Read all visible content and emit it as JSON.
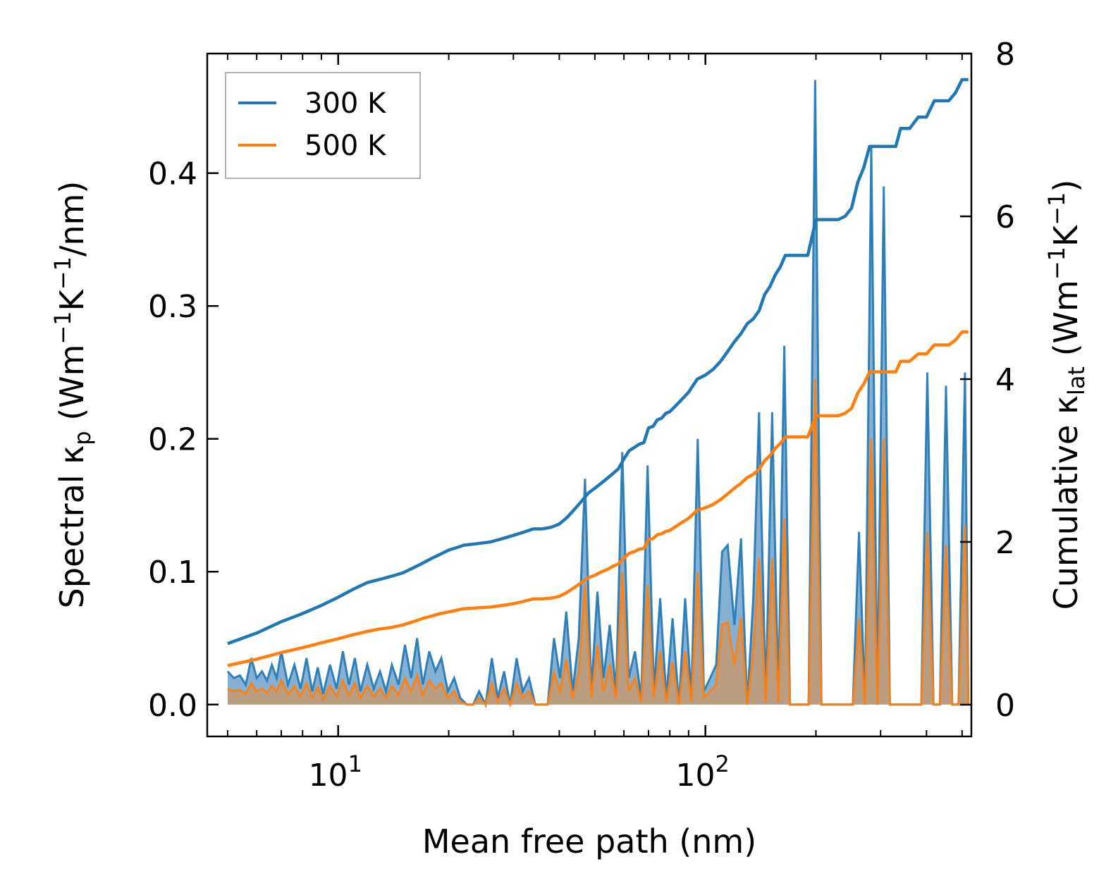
{
  "chart_data": {
    "type": "line",
    "x_scale": "log",
    "xlabel": "Mean free path (nm)",
    "ylabel_left": {
      "prefix": "Spectral κ",
      "sub": "p",
      "units_open": " (Wm",
      "sup1": "−1",
      "mid": "K",
      "sup2": "−1",
      "suffix": "/nm)"
    },
    "ylabel_right": {
      "prefix": "Cumulative κ",
      "sub": "lat",
      "units_open": " (Wm",
      "sup1": "−1",
      "mid": "K",
      "sup2": "−1",
      "suffix": ")"
    },
    "xlim": [
      4.4,
      530
    ],
    "ylim_left": [
      -0.024,
      0.49
    ],
    "ylim_right": [
      -0.39,
      8.0
    ],
    "x_ticks": [
      {
        "base": "10",
        "exp": "1",
        "value": 10
      },
      {
        "base": "10",
        "exp": "2",
        "value": 100
      }
    ],
    "y_left_ticks": [
      "0.0",
      "0.1",
      "0.2",
      "0.3",
      "0.4"
    ],
    "y_left_values": [
      0.0,
      0.1,
      0.2,
      0.3,
      0.4
    ],
    "y_right_ticks": [
      "0",
      "2",
      "4",
      "6",
      "8"
    ],
    "y_right_values": [
      0,
      2,
      4,
      6,
      8
    ],
    "legend": {
      "position": "top-left",
      "entries": [
        "300 K",
        "500 K"
      ]
    },
    "colors": {
      "300 K": "#1f77b4",
      "500 K": "#ff7f0e",
      "fill_300": "#5b95c4",
      "fill_500": "#c39a72"
    },
    "series_cumulative": [
      {
        "name": "300 K",
        "x": [
          5,
          6,
          7,
          8,
          9,
          10,
          11,
          12,
          13,
          14,
          15,
          16,
          17,
          18,
          19,
          20,
          21,
          22,
          24,
          26,
          28,
          30,
          32,
          34,
          36,
          38,
          40,
          42,
          44,
          46,
          48,
          50,
          52,
          54,
          56,
          58,
          60,
          62,
          64,
          66,
          68,
          70,
          72,
          74,
          76,
          78,
          80,
          85,
          90,
          95,
          100,
          105,
          110,
          115,
          120,
          125,
          130,
          135,
          140,
          145,
          150,
          155,
          160,
          165,
          170,
          180,
          190,
          200,
          210,
          220,
          230,
          240,
          250,
          260,
          270,
          280,
          290,
          300,
          310,
          320,
          330,
          340,
          360,
          380,
          400,
          420,
          440,
          460,
          480,
          500,
          520
        ],
        "y": [
          0.75,
          0.88,
          1.02,
          1.12,
          1.22,
          1.32,
          1.42,
          1.5,
          1.54,
          1.58,
          1.62,
          1.68,
          1.74,
          1.8,
          1.85,
          1.9,
          1.93,
          1.96,
          1.98,
          2.0,
          2.04,
          2.08,
          2.12,
          2.16,
          2.16,
          2.18,
          2.22,
          2.3,
          2.4,
          2.5,
          2.6,
          2.66,
          2.72,
          2.78,
          2.84,
          2.9,
          3.02,
          3.12,
          3.16,
          3.2,
          3.22,
          3.4,
          3.42,
          3.5,
          3.52,
          3.58,
          3.6,
          3.72,
          3.84,
          4.0,
          4.05,
          4.12,
          4.22,
          4.34,
          4.46,
          4.56,
          4.68,
          4.74,
          4.84,
          5.04,
          5.14,
          5.28,
          5.38,
          5.52,
          5.52,
          5.52,
          5.52,
          5.96,
          5.96,
          5.96,
          5.96,
          6.0,
          6.1,
          6.42,
          6.6,
          6.86,
          6.86,
          6.86,
          6.86,
          6.86,
          6.86,
          7.08,
          7.08,
          7.22,
          7.22,
          7.42,
          7.42,
          7.42,
          7.52,
          7.68,
          7.68
        ]
      },
      {
        "name": "500 K",
        "x": [
          5,
          6,
          7,
          8,
          9,
          10,
          11,
          12,
          13,
          14,
          15,
          16,
          17,
          18,
          19,
          20,
          21,
          22,
          24,
          26,
          28,
          30,
          32,
          34,
          36,
          38,
          40,
          42,
          44,
          46,
          48,
          50,
          52,
          54,
          56,
          58,
          60,
          62,
          64,
          66,
          68,
          70,
          72,
          74,
          76,
          78,
          80,
          85,
          90,
          95,
          100,
          105,
          110,
          115,
          120,
          125,
          130,
          135,
          140,
          145,
          150,
          155,
          160,
          165,
          170,
          180,
          190,
          200,
          210,
          220,
          230,
          240,
          250,
          260,
          270,
          280,
          290,
          300,
          310,
          320,
          330,
          340,
          360,
          380,
          400,
          420,
          440,
          460,
          480,
          500,
          520
        ],
        "y": [
          0.48,
          0.56,
          0.64,
          0.7,
          0.76,
          0.81,
          0.86,
          0.9,
          0.93,
          0.95,
          0.98,
          1.02,
          1.06,
          1.09,
          1.12,
          1.14,
          1.16,
          1.18,
          1.19,
          1.2,
          1.22,
          1.24,
          1.27,
          1.3,
          1.3,
          1.31,
          1.33,
          1.38,
          1.44,
          1.5,
          1.56,
          1.59,
          1.63,
          1.66,
          1.7,
          1.73,
          1.8,
          1.86,
          1.88,
          1.91,
          1.92,
          2.03,
          2.04,
          2.09,
          2.1,
          2.13,
          2.14,
          2.22,
          2.29,
          2.39,
          2.42,
          2.46,
          2.52,
          2.59,
          2.66,
          2.72,
          2.79,
          2.83,
          2.89,
          3.0,
          3.06,
          3.15,
          3.21,
          3.29,
          3.29,
          3.29,
          3.29,
          3.55,
          3.55,
          3.55,
          3.55,
          3.58,
          3.64,
          3.83,
          3.94,
          4.09,
          4.09,
          4.09,
          4.09,
          4.09,
          4.09,
          4.22,
          4.22,
          4.31,
          4.31,
          4.42,
          4.42,
          4.42,
          4.48,
          4.58,
          4.58
        ]
      }
    ],
    "series_spectral": [
      {
        "name": "300 K",
        "x": [
          5,
          5.2,
          5.4,
          5.6,
          5.8,
          6,
          6.2,
          6.4,
          6.6,
          6.8,
          7,
          7.3,
          7.6,
          7.9,
          8.2,
          8.5,
          8.8,
          9.1,
          9.5,
          9.9,
          10.3,
          10.7,
          11.1,
          11.5,
          12,
          12.5,
          13,
          13.5,
          14,
          14.6,
          15.2,
          15.8,
          16.4,
          17,
          17.7,
          18.4,
          19.1,
          19.9,
          20.7,
          21.5,
          22.4,
          23.3,
          24.2,
          25.2,
          26.2,
          27.2,
          28.3,
          29.4,
          30.6,
          31.8,
          33.1,
          34.4,
          35.8,
          37.2,
          38.7,
          40.2,
          41.8,
          43.5,
          45.2,
          47,
          48.9,
          50.8,
          52.8,
          54.9,
          57.1,
          59.4,
          61.8,
          64.3,
          66.9,
          69.6,
          72.4,
          75.3,
          78.3,
          81.4,
          84.7,
          88.1,
          91.6,
          95.3,
          99.1,
          103,
          107,
          111,
          115,
          120,
          125,
          130,
          135,
          140,
          146,
          152,
          158,
          164,
          170,
          177,
          184,
          191,
          199,
          207,
          215,
          224,
          233,
          242,
          252,
          262,
          272,
          283,
          294,
          306,
          318,
          331,
          344,
          358,
          372,
          387,
          402,
          418,
          435,
          452,
          470,
          489,
          509,
          520
        ],
        "y": [
          0.025,
          0.02,
          0.022,
          0.015,
          0.035,
          0.02,
          0.025,
          0.018,
          0.03,
          0.02,
          0.04,
          0.015,
          0.03,
          0.012,
          0.035,
          0.01,
          0.028,
          0.008,
          0.03,
          0.012,
          0.04,
          0.015,
          0.035,
          0.01,
          0.03,
          0.012,
          0.025,
          0.01,
          0.03,
          0.015,
          0.045,
          0.02,
          0.05,
          0.015,
          0.04,
          0.025,
          0.035,
          0.01,
          0.02,
          0.005,
          0.0,
          0.0,
          0.01,
          0.0,
          0.035,
          0.005,
          0.025,
          0.0,
          0.035,
          0.01,
          0.02,
          0.0,
          0.0,
          0.0,
          0.05,
          0.02,
          0.07,
          0.01,
          0.05,
          0.17,
          0.01,
          0.085,
          0.02,
          0.06,
          0.01,
          0.19,
          0.02,
          0.04,
          0.005,
          0.18,
          0.01,
          0.08,
          0.005,
          0.065,
          0.0,
          0.08,
          0.005,
          0.2,
          0.01,
          0.02,
          0.03,
          0.115,
          0.12,
          0.06,
          0.125,
          0.0,
          0.08,
          0.22,
          0.005,
          0.22,
          0.005,
          0.27,
          0.0,
          0.0,
          0.0,
          0.0,
          0.47,
          0.0,
          0.0,
          0.0,
          0.0,
          0.0,
          0.0,
          0.13,
          0.0,
          0.42,
          0.0,
          0.39,
          0.0,
          0.0,
          0.0,
          0.0,
          0.0,
          0.0,
          0.25,
          0.0,
          0.0,
          0.24,
          0.0,
          0.0,
          0.25,
          0.0
        ]
      },
      {
        "name": "500 K",
        "x": [
          5,
          5.2,
          5.4,
          5.6,
          5.8,
          6,
          6.2,
          6.4,
          6.6,
          6.8,
          7,
          7.3,
          7.6,
          7.9,
          8.2,
          8.5,
          8.8,
          9.1,
          9.5,
          9.9,
          10.3,
          10.7,
          11.1,
          11.5,
          12,
          12.5,
          13,
          13.5,
          14,
          14.6,
          15.2,
          15.8,
          16.4,
          17,
          17.7,
          18.4,
          19.1,
          19.9,
          20.7,
          21.5,
          22.4,
          23.3,
          24.2,
          25.2,
          26.2,
          27.2,
          28.3,
          29.4,
          30.6,
          31.8,
          33.1,
          34.4,
          35.8,
          37.2,
          38.7,
          40.2,
          41.8,
          43.5,
          45.2,
          47,
          48.9,
          50.8,
          52.8,
          54.9,
          57.1,
          59.4,
          61.8,
          64.3,
          66.9,
          69.6,
          72.4,
          75.3,
          78.3,
          81.4,
          84.7,
          88.1,
          91.6,
          95.3,
          99.1,
          103,
          107,
          111,
          115,
          120,
          125,
          130,
          135,
          140,
          146,
          152,
          158,
          164,
          170,
          177,
          184,
          191,
          199,
          207,
          215,
          224,
          233,
          242,
          252,
          262,
          272,
          283,
          294,
          306,
          318,
          331,
          344,
          358,
          372,
          387,
          402,
          418,
          435,
          452,
          470,
          489,
          509,
          520
        ],
        "y": [
          0.012,
          0.01,
          0.011,
          0.008,
          0.016,
          0.01,
          0.012,
          0.009,
          0.014,
          0.01,
          0.018,
          0.008,
          0.014,
          0.006,
          0.016,
          0.005,
          0.013,
          0.004,
          0.014,
          0.006,
          0.018,
          0.007,
          0.016,
          0.005,
          0.014,
          0.006,
          0.012,
          0.005,
          0.014,
          0.007,
          0.02,
          0.01,
          0.022,
          0.007,
          0.018,
          0.012,
          0.016,
          0.005,
          0.01,
          0.002,
          0.0,
          0.0,
          0.005,
          0.0,
          0.016,
          0.002,
          0.012,
          0.0,
          0.016,
          0.005,
          0.01,
          0.0,
          0.0,
          0.0,
          0.024,
          0.01,
          0.034,
          0.005,
          0.024,
          0.09,
          0.005,
          0.045,
          0.01,
          0.03,
          0.005,
          0.1,
          0.01,
          0.02,
          0.002,
          0.09,
          0.005,
          0.04,
          0.002,
          0.032,
          0.0,
          0.04,
          0.002,
          0.1,
          0.005,
          0.01,
          0.015,
          0.06,
          0.062,
          0.03,
          0.065,
          0.0,
          0.04,
          0.11,
          0.002,
          0.11,
          0.002,
          0.14,
          0.0,
          0.0,
          0.0,
          0.0,
          0.245,
          0.0,
          0.0,
          0.0,
          0.0,
          0.0,
          0.0,
          0.065,
          0.0,
          0.2,
          0.0,
          0.2,
          0.0,
          0.0,
          0.0,
          0.0,
          0.0,
          0.0,
          0.13,
          0.0,
          0.0,
          0.12,
          0.0,
          0.0,
          0.135,
          0.0
        ]
      }
    ]
  }
}
